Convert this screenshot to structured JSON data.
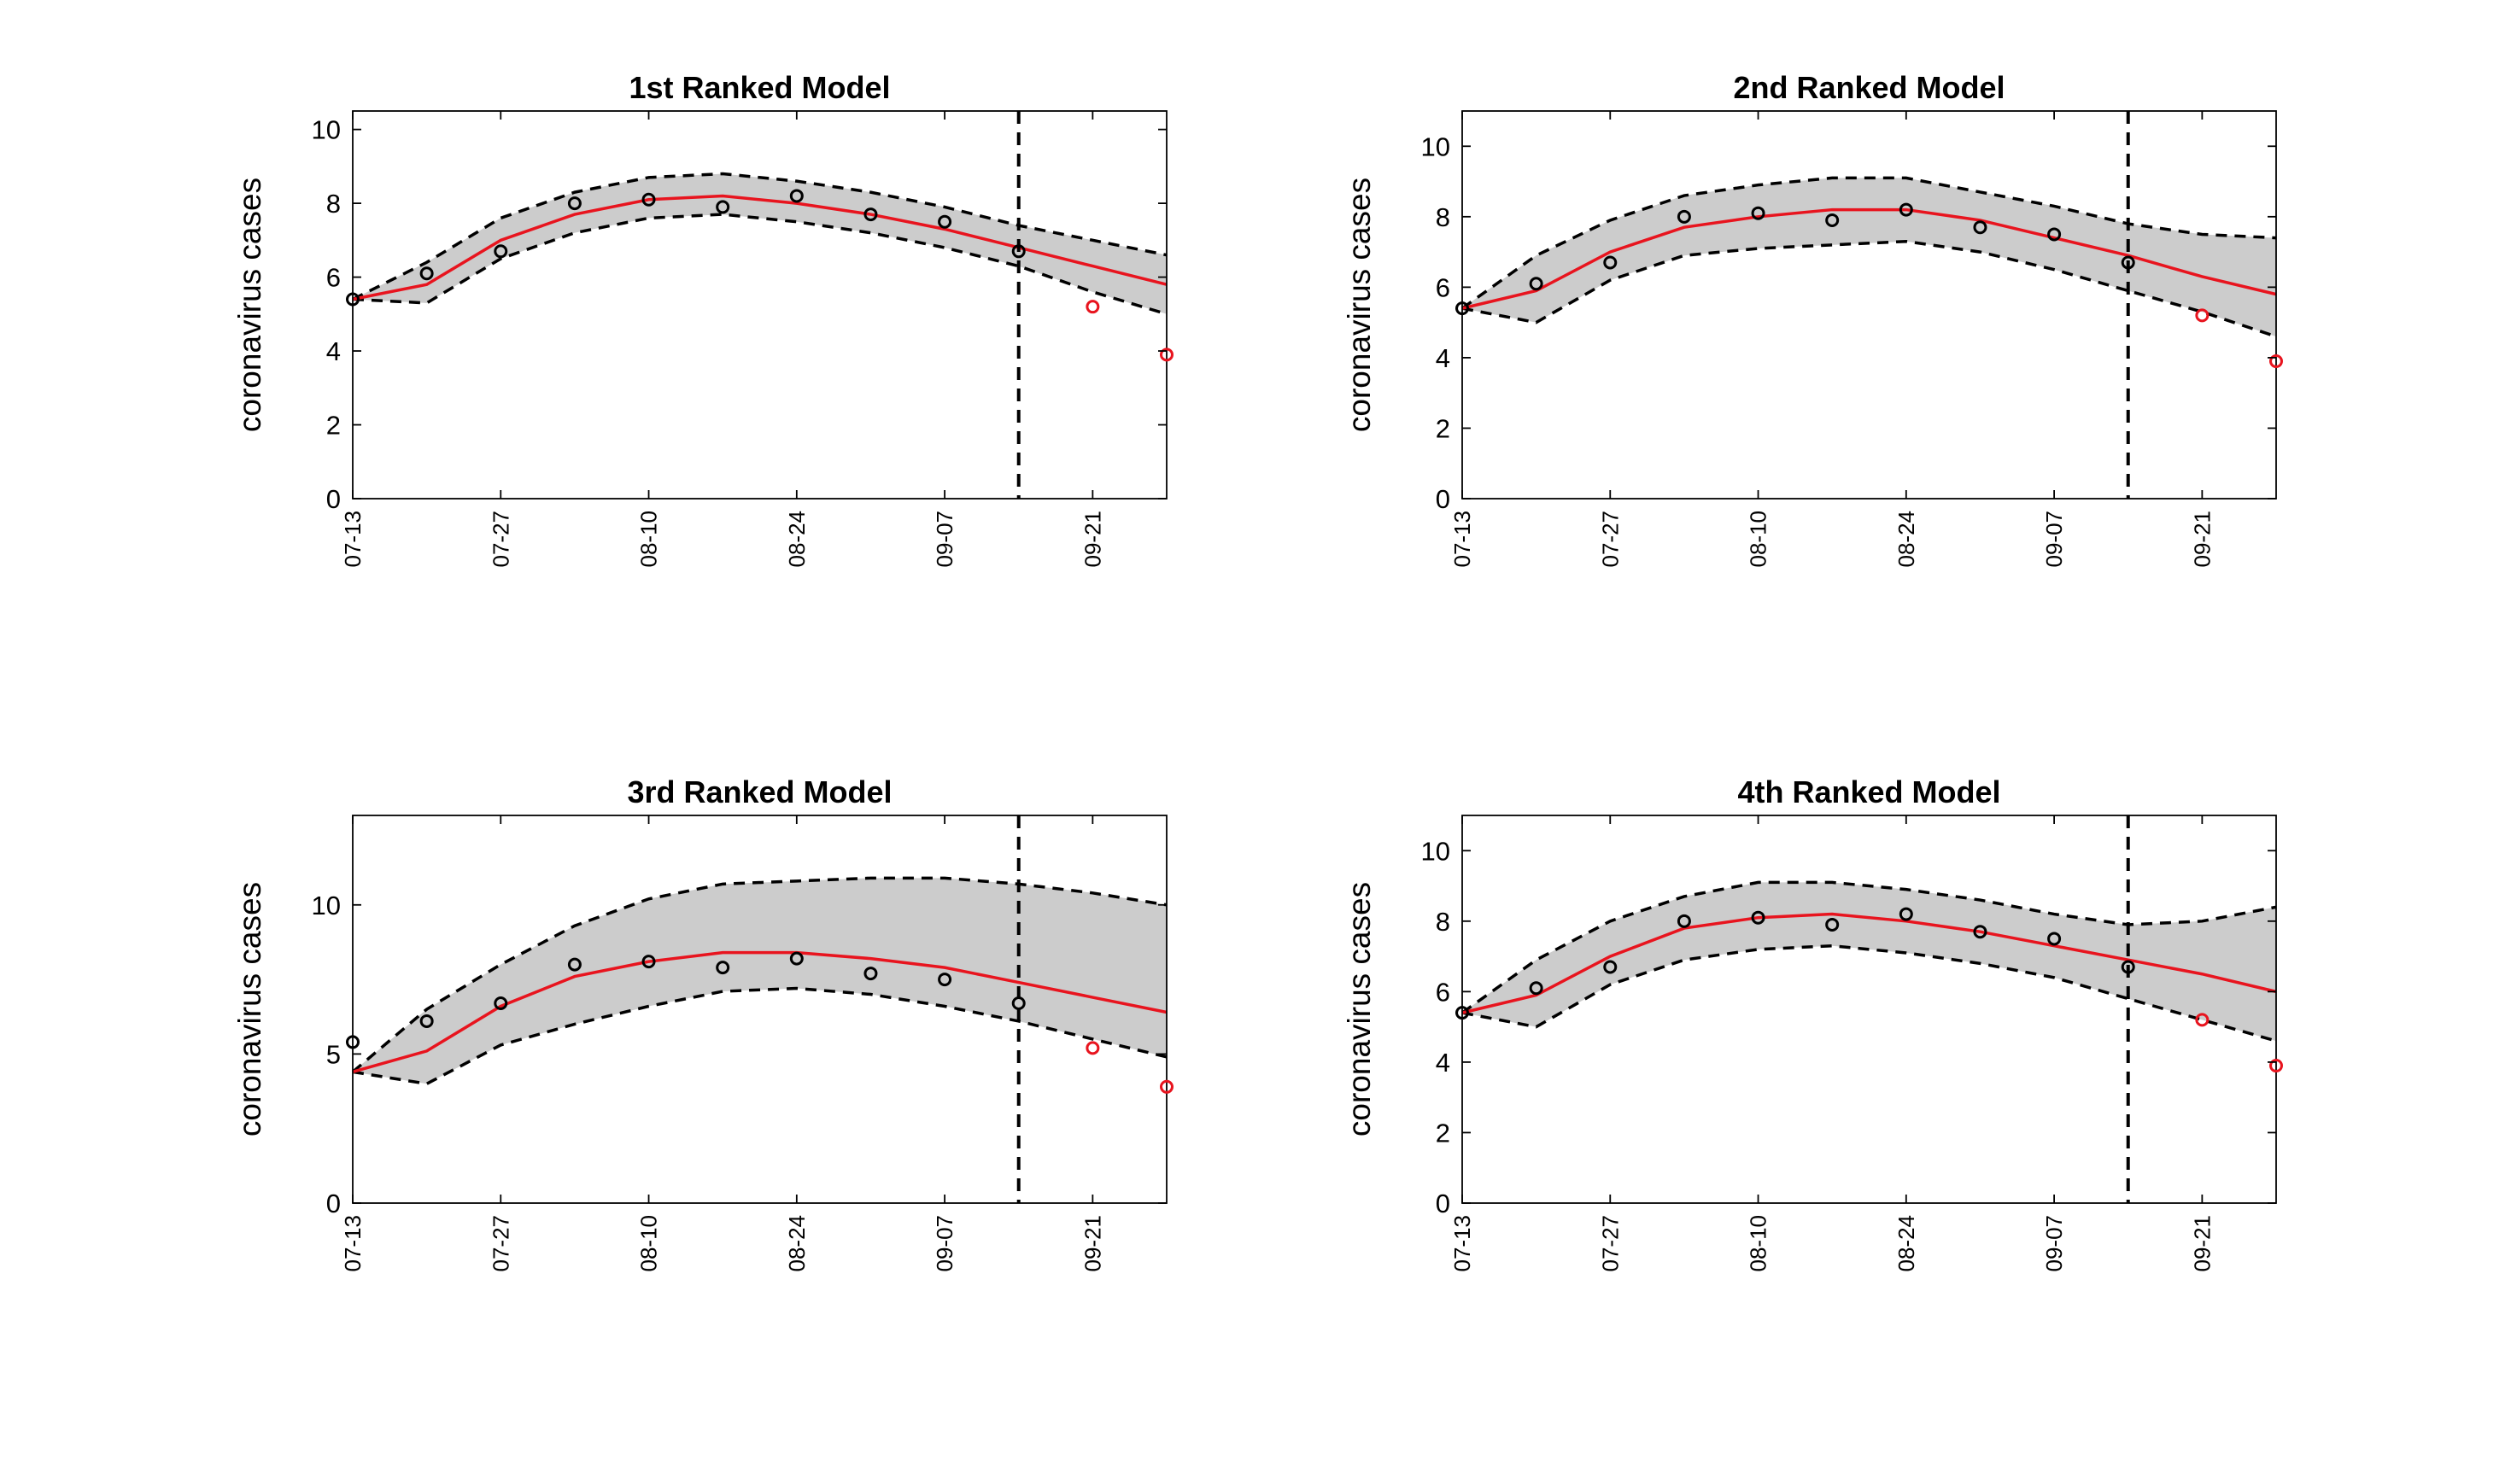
{
  "colors": {
    "band": "#cccccc",
    "bounds": "#000000",
    "fit": "#e8141e",
    "observed": "#000000",
    "heldout": "#e8141e",
    "divider": "#000000"
  },
  "chart_data": [
    {
      "type": "line",
      "title": "1st Ranked Model",
      "ylabel": "coronavirus cases",
      "xlabel": "",
      "x_ticks": [
        "07-13",
        "07-27",
        "08-10",
        "08-24",
        "09-07",
        "09-21"
      ],
      "ylim": [
        0,
        10.5
      ],
      "y_ticks": [
        0,
        2,
        4,
        6,
        8,
        10
      ],
      "xlim": [
        0,
        77
      ],
      "divider_x": 63,
      "grid": false,
      "series": [
        {
          "role": "upper_bound",
          "x": [
            0,
            7,
            14,
            21,
            28,
            35,
            42,
            49,
            56,
            63,
            70,
            77
          ],
          "y": [
            5.4,
            6.4,
            7.6,
            8.3,
            8.7,
            8.8,
            8.6,
            8.3,
            7.9,
            7.4,
            7.0,
            6.6
          ]
        },
        {
          "role": "lower_bound",
          "x": [
            0,
            7,
            14,
            21,
            28,
            35,
            42,
            49,
            56,
            63,
            70,
            77
          ],
          "y": [
            5.4,
            5.3,
            6.5,
            7.2,
            7.6,
            7.7,
            7.5,
            7.2,
            6.8,
            6.3,
            5.6,
            5.0
          ]
        },
        {
          "role": "fit",
          "x": [
            0,
            7,
            14,
            21,
            28,
            35,
            42,
            49,
            56,
            63,
            70,
            77
          ],
          "y": [
            5.4,
            5.8,
            7.0,
            7.7,
            8.1,
            8.2,
            8.0,
            7.7,
            7.3,
            6.8,
            6.3,
            5.8
          ]
        },
        {
          "role": "observed",
          "x": [
            0,
            7,
            14,
            21,
            28,
            35,
            42,
            49,
            56,
            63
          ],
          "y": [
            5.4,
            6.1,
            6.7,
            8.0,
            8.1,
            7.9,
            8.2,
            7.7,
            7.5,
            6.7
          ]
        },
        {
          "role": "heldout",
          "x": [
            70,
            77
          ],
          "y": [
            5.2,
            3.9
          ]
        }
      ]
    },
    {
      "type": "line",
      "title": "2nd Ranked Model",
      "ylabel": "coronavirus cases",
      "xlabel": "",
      "x_ticks": [
        "07-13",
        "07-27",
        "08-10",
        "08-24",
        "09-07",
        "09-21"
      ],
      "ylim": [
        0,
        11
      ],
      "y_ticks": [
        0,
        2,
        4,
        6,
        8,
        10
      ],
      "xlim": [
        0,
        77
      ],
      "divider_x": 63,
      "grid": false,
      "series": [
        {
          "role": "upper_bound",
          "x": [
            0,
            7,
            14,
            21,
            28,
            35,
            42,
            49,
            56,
            63,
            70,
            77
          ],
          "y": [
            5.4,
            6.9,
            7.9,
            8.6,
            8.9,
            9.1,
            9.1,
            8.7,
            8.3,
            7.8,
            7.5,
            7.4
          ]
        },
        {
          "role": "lower_bound",
          "x": [
            0,
            7,
            14,
            21,
            28,
            35,
            42,
            49,
            56,
            63,
            70,
            77
          ],
          "y": [
            5.4,
            5.0,
            6.2,
            6.9,
            7.1,
            7.2,
            7.3,
            7.0,
            6.5,
            5.9,
            5.3,
            4.6
          ]
        },
        {
          "role": "fit",
          "x": [
            0,
            7,
            14,
            21,
            28,
            35,
            42,
            49,
            56,
            63,
            70,
            77
          ],
          "y": [
            5.4,
            5.9,
            7.0,
            7.7,
            8.0,
            8.2,
            8.2,
            7.9,
            7.4,
            6.9,
            6.3,
            5.8
          ]
        },
        {
          "role": "observed",
          "x": [
            0,
            7,
            14,
            21,
            28,
            35,
            42,
            49,
            56,
            63
          ],
          "y": [
            5.4,
            6.1,
            6.7,
            8.0,
            8.1,
            7.9,
            8.2,
            7.7,
            7.5,
            6.7
          ]
        },
        {
          "role": "heldout",
          "x": [
            70,
            77
          ],
          "y": [
            5.2,
            3.9
          ]
        }
      ]
    },
    {
      "type": "line",
      "title": "3rd Ranked Model",
      "ylabel": "coronavirus cases",
      "xlabel": "",
      "x_ticks": [
        "07-13",
        "07-27",
        "08-10",
        "08-24",
        "09-07",
        "09-21"
      ],
      "ylim": [
        0,
        13
      ],
      "y_ticks": [
        0,
        5,
        10
      ],
      "xlim": [
        0,
        77
      ],
      "divider_x": 63,
      "grid": false,
      "series": [
        {
          "role": "upper_bound",
          "x": [
            0,
            7,
            14,
            21,
            28,
            35,
            42,
            49,
            56,
            63,
            70,
            77
          ],
          "y": [
            4.4,
            6.5,
            8.0,
            9.3,
            10.2,
            10.7,
            10.8,
            10.9,
            10.9,
            10.7,
            10.4,
            10.0
          ]
        },
        {
          "role": "lower_bound",
          "x": [
            0,
            7,
            14,
            21,
            28,
            35,
            42,
            49,
            56,
            63,
            70,
            77
          ],
          "y": [
            4.4,
            4.0,
            5.3,
            6.0,
            6.6,
            7.1,
            7.2,
            7.0,
            6.6,
            6.1,
            5.5,
            4.9
          ]
        },
        {
          "role": "fit",
          "x": [
            0,
            7,
            14,
            21,
            28,
            35,
            42,
            49,
            56,
            63,
            70,
            77
          ],
          "y": [
            4.4,
            5.1,
            6.6,
            7.6,
            8.1,
            8.4,
            8.4,
            8.2,
            7.9,
            7.4,
            6.9,
            6.4
          ]
        },
        {
          "role": "observed",
          "x": [
            0,
            7,
            14,
            21,
            28,
            35,
            42,
            49,
            56,
            63
          ],
          "y": [
            5.4,
            6.1,
            6.7,
            8.0,
            8.1,
            7.9,
            8.2,
            7.7,
            7.5,
            6.7
          ]
        },
        {
          "role": "heldout",
          "x": [
            70,
            77
          ],
          "y": [
            5.2,
            3.9
          ]
        }
      ]
    },
    {
      "type": "line",
      "title": "4th Ranked Model",
      "ylabel": "coronavirus cases",
      "xlabel": "",
      "x_ticks": [
        "07-13",
        "07-27",
        "08-10",
        "08-24",
        "09-07",
        "09-21"
      ],
      "ylim": [
        0,
        11
      ],
      "y_ticks": [
        0,
        2,
        4,
        6,
        8,
        10
      ],
      "xlim": [
        0,
        77
      ],
      "divider_x": 63,
      "grid": false,
      "series": [
        {
          "role": "upper_bound",
          "x": [
            0,
            7,
            14,
            21,
            28,
            35,
            42,
            49,
            56,
            63,
            70,
            77
          ],
          "y": [
            5.4,
            6.9,
            8.0,
            8.7,
            9.1,
            9.1,
            8.9,
            8.6,
            8.2,
            7.9,
            8.0,
            8.4
          ]
        },
        {
          "role": "lower_bound",
          "x": [
            0,
            7,
            14,
            21,
            28,
            35,
            42,
            49,
            56,
            63,
            70,
            77
          ],
          "y": [
            5.4,
            5.0,
            6.2,
            6.9,
            7.2,
            7.3,
            7.1,
            6.8,
            6.4,
            5.8,
            5.2,
            4.6
          ]
        },
        {
          "role": "fit",
          "x": [
            0,
            7,
            14,
            21,
            28,
            35,
            42,
            49,
            56,
            63,
            70,
            77
          ],
          "y": [
            5.4,
            5.9,
            7.0,
            7.8,
            8.1,
            8.2,
            8.0,
            7.7,
            7.3,
            6.9,
            6.5,
            6.0
          ]
        },
        {
          "role": "observed",
          "x": [
            0,
            7,
            14,
            21,
            28,
            35,
            42,
            49,
            56,
            63
          ],
          "y": [
            5.4,
            6.1,
            6.7,
            8.0,
            8.1,
            7.9,
            8.2,
            7.7,
            7.5,
            6.7
          ]
        },
        {
          "role": "heldout",
          "x": [
            70,
            77
          ],
          "y": [
            5.2,
            3.9
          ]
        }
      ]
    }
  ]
}
